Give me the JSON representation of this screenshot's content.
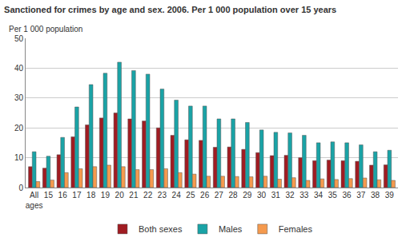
{
  "chart_data": {
    "type": "bar",
    "title": "Sanctioned for crimes by age and sex. 2006. Per 1 000 population over 15 years",
    "y_label": "Per 1 000 population",
    "categories": [
      "All ages",
      "15",
      "16",
      "17",
      "18",
      "19",
      "20",
      "21",
      "22",
      "23",
      "24",
      "25",
      "26",
      "27",
      "28",
      "29",
      "30",
      "31",
      "32",
      "33",
      "34",
      "35",
      "36",
      "37",
      "38",
      "39"
    ],
    "series": [
      {
        "name": "Both sexes",
        "color": "#a01c22",
        "values": [
          7,
          6.5,
          11,
          17,
          21,
          23.3,
          25,
          23,
          22.3,
          20,
          17.5,
          16,
          15.8,
          13.5,
          13.6,
          12.8,
          11.7,
          10.7,
          10.8,
          10,
          9,
          9.2,
          9,
          8.8,
          7.5,
          7.6
        ]
      },
      {
        "name": "Males",
        "color": "#1aa3a6",
        "values": [
          12,
          10.5,
          16.8,
          27,
          34.5,
          38.3,
          42,
          39.2,
          38,
          33,
          29.3,
          27.3,
          27.3,
          23,
          23,
          21.8,
          19.3,
          18.5,
          18.3,
          17.5,
          15,
          15.3,
          15,
          14.3,
          12,
          12.5
        ]
      },
      {
        "name": "Females",
        "color": "#f59a4e",
        "values": [
          2,
          2.5,
          5,
          6.3,
          7,
          7.5,
          7,
          6,
          6,
          6.3,
          5,
          4.5,
          3.8,
          3.8,
          3.7,
          3.6,
          3.8,
          2.8,
          3.3,
          2.4,
          2.9,
          2.7,
          3,
          3.2,
          2.6,
          2.4
        ]
      }
    ],
    "ylim": [
      0,
      50
    ],
    "yticks": [
      0,
      10,
      20,
      30,
      40,
      50
    ],
    "grid": true,
    "legend": "bottom"
  }
}
